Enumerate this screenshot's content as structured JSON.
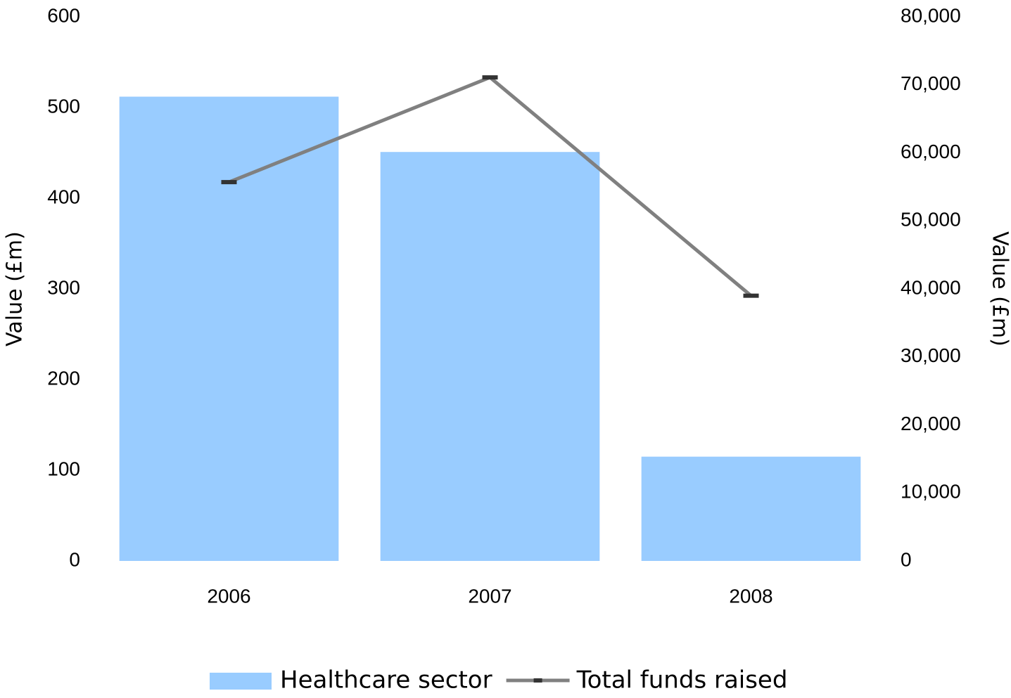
{
  "chart_data": {
    "type": "bar",
    "categories": [
      "2006",
      "2007",
      "2008"
    ],
    "series": [
      {
        "name": "Healthcare sector",
        "type": "bar",
        "axis": "y",
        "color": "#99ccff",
        "values": [
          512,
          451,
          115
        ]
      },
      {
        "name": "Total funds raised",
        "type": "line",
        "axis": "y2",
        "color": "#808080",
        "marker_color": "#333333",
        "values": [
          55700,
          71100,
          39000
        ]
      }
    ],
    "ylabel": "Value (£m)",
    "y2label": "Value (£m)",
    "ylim": [
      0,
      600
    ],
    "yticks": [
      0,
      100,
      200,
      300,
      400,
      500,
      600
    ],
    "y2lim": [
      0,
      80000
    ],
    "y2ticks": [
      0,
      {
        "value": 10000,
        "label": "10,000"
      },
      {
        "value": 20000,
        "label": "20,000"
      },
      {
        "value": 30000,
        "label": "30,000"
      },
      {
        "value": 40000,
        "label": "40,000"
      },
      {
        "value": 50000,
        "label": "50,000"
      },
      {
        "value": 60000,
        "label": "60,000"
      },
      {
        "value": 70000,
        "label": "70,000"
      },
      {
        "value": 80000,
        "label": "80,000"
      }
    ],
    "grid": false,
    "legend": "bottom"
  }
}
